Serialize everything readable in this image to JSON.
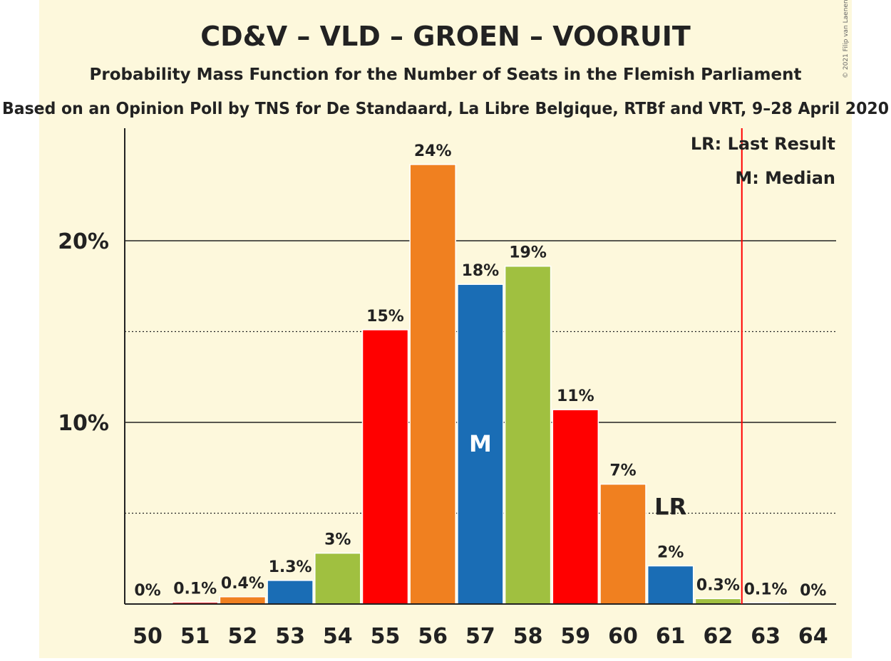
{
  "chart_data": {
    "type": "bar",
    "title": "CD&V – VLD – GROEN – VOORUIT",
    "subtitle": "Probability Mass Function for the Number of Seats in the Flemish Parliament",
    "source": "Based on an Opinion Poll by TNS for De Standaard, La Libre Belgique, RTBf and VRT, 9–28 April 2020",
    "copyright": "© 2021 Filip van Laenen",
    "categories": [
      "50",
      "51",
      "52",
      "53",
      "54",
      "55",
      "56",
      "57",
      "58",
      "59",
      "60",
      "61",
      "62",
      "63",
      "64"
    ],
    "values": [
      0,
      0.1,
      0.4,
      1.3,
      2.8,
      15.1,
      24.2,
      17.6,
      18.6,
      10.7,
      6.6,
      2.1,
      0.3,
      0.05,
      0
    ],
    "value_labels": [
      "0%",
      "0.1%",
      "0.4%",
      "1.3%",
      "3%",
      "15%",
      "24%",
      "18%",
      "19%",
      "11%",
      "7%",
      "2%",
      "0.3%",
      "0.1%",
      "0%"
    ],
    "bar_colors": [
      "#ff0000",
      "#ff0000",
      "#f08020",
      "#1a6db5",
      "#a0c040",
      "#ff0000",
      "#f08020",
      "#1a6db5",
      "#a0c040",
      "#ff0000",
      "#f08020",
      "#1a6db5",
      "#a0c040",
      "#ff0000",
      "#f08020"
    ],
    "ylim": [
      0,
      26
    ],
    "yticks": [
      {
        "value": 10,
        "label": "10%"
      },
      {
        "value": 20,
        "label": "20%"
      }
    ],
    "dotted_gridlines": [
      5,
      15
    ],
    "xlabel": "",
    "ylabel": "",
    "median": {
      "seats": "57",
      "label": "M"
    },
    "last_result": {
      "seats": "61",
      "label": "LR"
    },
    "majority_line_after": "62",
    "legend": {
      "position": "top-right",
      "items": [
        "LR: Last Result",
        "M: Median"
      ]
    },
    "background": "#fdf8dc",
    "majority_line_color": "#ff0000"
  }
}
